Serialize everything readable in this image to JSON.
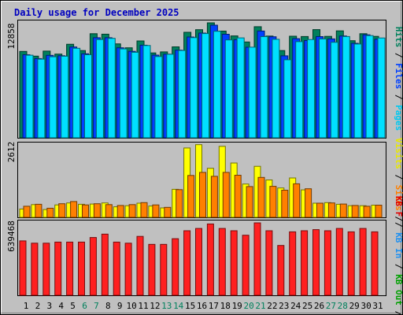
{
  "chart_data": {
    "type": "bar",
    "title": "Daily usage for December 2025",
    "days": [
      "1",
      "2",
      "3",
      "4",
      "5",
      "6",
      "7",
      "8",
      "9",
      "10",
      "11",
      "12",
      "13",
      "14",
      "15",
      "16",
      "17",
      "18",
      "19",
      "20",
      "21",
      "22",
      "23",
      "24",
      "25",
      "26",
      "27",
      "28",
      "29",
      "30",
      "31"
    ],
    "weekend_days": [
      6,
      7,
      13,
      14,
      20,
      21,
      27,
      28
    ],
    "panels": [
      {
        "id": "top",
        "max_label": "12858",
        "max": 12858,
        "legend": [
          {
            "text": "Hits",
            "color": "#00805c"
          },
          {
            "text": " / ",
            "color": "#000000"
          },
          {
            "text": "Files",
            "color": "#0040ff"
          },
          {
            "text": " / ",
            "color": "#000000"
          },
          {
            "text": "Pages",
            "color": "#00c8f0"
          }
        ],
        "series": [
          {
            "name": "Hits",
            "color": "#00805c",
            "values": [
              9660,
              9130,
              9700,
              9360,
              10460,
              9760,
              11640,
              11590,
              10510,
              10070,
              10830,
              9490,
              9610,
              10170,
              11800,
              12090,
              12858,
              11930,
              11400,
              10720,
              12430,
              11380,
              9760,
              11360,
              11330,
              12100,
              11340,
              11960,
              10860,
              11640,
              11340
            ]
          },
          {
            "name": "Files",
            "color": "#0040ff",
            "values": [
              9290,
              8860,
              9220,
              9180,
              10150,
              9400,
              11190,
              11190,
              10070,
              9670,
              10360,
              9250,
              9350,
              9800,
              11270,
              11710,
              12590,
              11580,
              10970,
              10130,
              11940,
              11300,
              9170,
              11090,
              10880,
              11320,
              11060,
              11390,
              10570,
              11520,
              11030
            ]
          },
          {
            "name": "Pages",
            "color": "#00e0ff",
            "values": [
              9240,
              8800,
              9060,
              9120,
              10010,
              9290,
              10990,
              11120,
              9940,
              9560,
              10320,
              9090,
              9340,
              9770,
              11200,
              11660,
              11920,
              10950,
              11180,
              10140,
              11320,
              11020,
              8730,
              10750,
              10990,
              11060,
              10680,
              11330,
              10490,
              11430,
              11170
            ]
          }
        ]
      },
      {
        "id": "mid",
        "max_label": "2612",
        "max": 2612,
        "legend": [
          {
            "text": "Visits",
            "color": "#e8e800"
          },
          {
            "text": " / ",
            "color": "#000000"
          },
          {
            "text": "Sites",
            "color": "#ff8000"
          },
          {
            "text": " / ",
            "color": "#000000"
          }
        ],
        "series": [
          {
            "name": "Visits",
            "color": "#ffff00",
            "values": [
              300,
              460,
              280,
              450,
              520,
              470,
              480,
              520,
              380,
              420,
              510,
              410,
              340,
              1010,
              2500,
              2620,
              1770,
              2560,
              1960,
              1200,
              1840,
              1350,
              1060,
              1420,
              990,
              510,
              530,
              470,
              420,
              420,
              440
            ]
          },
          {
            "name": "Sites",
            "color": "#ff8000",
            "values": [
              400,
              470,
              330,
              490,
              570,
              450,
              490,
              460,
              430,
              460,
              530,
              450,
              360,
              1000,
              1510,
              1620,
              1480,
              1620,
              1520,
              1110,
              1440,
              1120,
              980,
              1210,
              1030,
              510,
              520,
              480,
              430,
              400,
              440
            ]
          }
        ]
      },
      {
        "id": "bot",
        "max_label": "639468",
        "max": 639468,
        "legend": [
          {
            "text": "KB F",
            "color": "#e00000"
          },
          {
            "text": " / ",
            "color": "#000000"
          },
          {
            "text": "KB In",
            "color": "#2090f0"
          },
          {
            "text": " / ",
            "color": "#000000"
          },
          {
            "text": "KB Out",
            "color": "#00a000"
          },
          {
            "text": " / ",
            "color": "#000000"
          }
        ],
        "series": [
          {
            "name": "KB F",
            "color": "#ff2020",
            "values": [
              480000,
              460000,
              460000,
              470000,
              470000,
              470000,
              510000,
              540000,
              470000,
              460000,
              520000,
              450000,
              450000,
              500000,
              570000,
              590000,
              630000,
              590000,
              570000,
              530000,
              639468,
              570000,
              440000,
              560000,
              570000,
              580000,
              570000,
              590000,
              560000,
              590000,
              560000
            ]
          }
        ]
      }
    ]
  }
}
